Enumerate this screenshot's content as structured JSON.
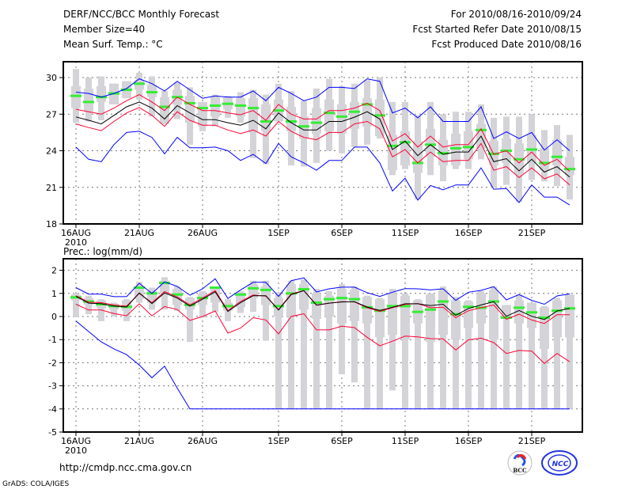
{
  "header": {
    "title": "DERF/NCC/BCC Monthly Forecast",
    "member_size": "Member Size=40",
    "variable": "Mean Surf. Temp.: °C",
    "period": "For 2010/08/16-2010/09/24",
    "started": "Fcst Started Refer Date 2010/08/15",
    "produced": "Fcst Produced Date 2010/08/16"
  },
  "footer": {
    "url": "http://cmdp.ncc.cma.gov.cn",
    "credit": "GrADS: COLA/IGES",
    "logo_bcc": "BCC",
    "logo_ncc": "NCC"
  },
  "colors": {
    "blue": "#0000ff",
    "red": "#ff0033",
    "black": "#000000",
    "green": "#33ee33",
    "box": "#d3d3d8",
    "grid": "#777777"
  },
  "chart_data": [
    {
      "type": "line",
      "title": "Mean Surf. Temp.: °C",
      "ylabel": "",
      "ylim": [
        18,
        31.3
      ],
      "yticks": [
        "18",
        "21",
        "24",
        "27",
        "30"
      ],
      "x_ticks": [
        {
          "day": 0,
          "label": "16AUG",
          "sub": "2010"
        },
        {
          "day": 5,
          "label": "21AUG"
        },
        {
          "day": 10,
          "label": "26AUG"
        },
        {
          "day": 16,
          "label": "1SEP"
        },
        {
          "day": 21,
          "label": "6SEP"
        },
        {
          "day": 26,
          "label": "11SEP"
        },
        {
          "day": 31,
          "label": "16SEP"
        },
        {
          "day": 36,
          "label": "21SEP"
        }
      ],
      "grid": true,
      "box": {
        "max": [
          30.7,
          30.0,
          30.1,
          29.5,
          29.7,
          30.4,
          30.1,
          28.9,
          29.6,
          29.2,
          28.0,
          28.6,
          28.5,
          28.8,
          29.0,
          28.6,
          29.5,
          28.9,
          28.1,
          29.1,
          29.9,
          29.3,
          29.5,
          29.8,
          30.0,
          28.0,
          28.0,
          26.9,
          28.0,
          27.0,
          27.2,
          27.2,
          27.8,
          26.7,
          26.8,
          26.8,
          27.0,
          25.7,
          26.1,
          25.3
        ],
        "q3": [
          29.3,
          29.1,
          29.3,
          29.5,
          29.7,
          29.8,
          29.4,
          28.4,
          29.0,
          28.5,
          28.0,
          28.4,
          28.4,
          28.3,
          28.3,
          27.8,
          28.2,
          27.6,
          26.8,
          27.5,
          28.2,
          27.8,
          28.0,
          28.3,
          28.2,
          25.3,
          25.6,
          24.8,
          25.8,
          24.9,
          25.4,
          25.6,
          26.2,
          24.8,
          25.0,
          24.6,
          25.3,
          24.2,
          24.9,
          23.5
        ],
        "q1": [
          27.5,
          27.2,
          28.0,
          27.8,
          28.3,
          29.0,
          28.4,
          26.2,
          27.8,
          26.3,
          26.0,
          26.8,
          27.4,
          26.8,
          25.5,
          25.6,
          26.4,
          25.6,
          25.0,
          25.4,
          25.6,
          25.4,
          25.8,
          26.0,
          25.2,
          22.4,
          22.8,
          22.2,
          23.5,
          22.8,
          22.8,
          23.3,
          24.2,
          22.8,
          23.0,
          22.1,
          23.0,
          22.4,
          22.8,
          22.0
        ],
        "min": [
          26.3,
          26.4,
          26.5,
          27.8,
          28.4,
          28.2,
          26.8,
          26.2,
          26.6,
          24.5,
          25.6,
          26.0,
          26.7,
          26.3,
          23.4,
          22.9,
          26.6,
          22.8,
          22.7,
          23.0,
          24.0,
          23.8,
          24.3,
          24.5,
          25.0,
          22.0,
          22.5,
          20.0,
          22.0,
          21.5,
          22.5,
          22.5,
          23.3,
          21.0,
          21.2,
          19.8,
          21.6,
          21.5,
          21.1,
          20.0
        ]
      },
      "series": [
        {
          "name": "blue-upper",
          "color": "blue",
          "values": [
            28.8,
            28.7,
            28.4,
            28.7,
            29.1,
            29.9,
            29.5,
            28.9,
            29.7,
            29.0,
            28.3,
            28.5,
            28.4,
            28.4,
            28.9,
            28.1,
            29.2,
            28.7,
            28.1,
            28.4,
            29.2,
            29.2,
            29.1,
            29.9,
            29.7,
            27.1,
            27.5,
            26.7,
            27.6,
            26.4,
            26.4,
            26.4,
            27.6,
            25.0,
            25.55,
            25.0,
            25.5,
            24.05,
            24.9,
            24.0
          ]
        },
        {
          "name": "red-upper",
          "color": "red",
          "values": [
            27.4,
            27.2,
            27.0,
            27.5,
            28.1,
            28.6,
            28.0,
            27.3,
            28.4,
            27.8,
            27.3,
            27.3,
            27.1,
            26.95,
            27.3,
            26.5,
            27.8,
            27.0,
            26.6,
            26.6,
            27.3,
            27.3,
            27.5,
            27.9,
            27.3,
            24.8,
            25.4,
            24.3,
            25.2,
            24.3,
            24.5,
            24.5,
            25.8,
            23.7,
            24.0,
            23.0,
            23.9,
            22.8,
            23.3,
            22.3
          ]
        },
        {
          "name": "ensemble-mean",
          "color": "black",
          "values": [
            26.77,
            26.5,
            26.2,
            26.9,
            27.6,
            28.0,
            27.5,
            26.6,
            27.7,
            27.1,
            26.55,
            26.55,
            26.3,
            26.1,
            26.5,
            25.8,
            27.1,
            26.3,
            25.7,
            25.7,
            26.4,
            26.4,
            26.75,
            27.2,
            26.6,
            24.1,
            24.8,
            23.6,
            24.5,
            23.7,
            23.9,
            23.9,
            25.2,
            23.1,
            23.35,
            22.35,
            23.3,
            22.25,
            22.7,
            21.85
          ]
        },
        {
          "name": "red-lower",
          "color": "red",
          "values": [
            26.2,
            25.9,
            25.65,
            26.4,
            27.1,
            27.55,
            26.9,
            26.0,
            27.2,
            26.5,
            26.1,
            26.1,
            25.7,
            25.4,
            25.7,
            25.2,
            26.4,
            25.6,
            25.1,
            24.9,
            25.5,
            25.5,
            26.2,
            26.4,
            25.8,
            23.5,
            24.1,
            23.0,
            23.9,
            23.1,
            23.2,
            23.2,
            24.6,
            22.4,
            22.7,
            21.8,
            22.6,
            21.7,
            22.1,
            21.2
          ]
        },
        {
          "name": "blue-lower",
          "color": "blue",
          "values": [
            24.3,
            23.3,
            23.1,
            24.5,
            25.5,
            25.6,
            25.1,
            23.75,
            25.1,
            24.25,
            24.25,
            24.3,
            24.0,
            23.2,
            23.7,
            22.95,
            24.6,
            23.5,
            23.0,
            22.4,
            23.2,
            23.2,
            24.3,
            24.3,
            23.0,
            20.7,
            21.75,
            19.95,
            21.15,
            20.8,
            21.2,
            21.2,
            22.6,
            20.85,
            20.9,
            19.75,
            21.2,
            20.2,
            20.2,
            19.55
          ]
        }
      ],
      "markers": {
        "name": "green-marks",
        "color": "green",
        "values": [
          28.5,
          28.0,
          28.4,
          28.7,
          29.0,
          29.5,
          28.8,
          27.6,
          28.4,
          27.9,
          27.5,
          27.7,
          27.85,
          27.7,
          27.5,
          26.4,
          27.3,
          26.4,
          26.0,
          26.3,
          27.1,
          26.8,
          27.2,
          27.8,
          26.9,
          24.4,
          24.7,
          23.0,
          24.5,
          23.8,
          24.2,
          24.3,
          25.7,
          23.75,
          24.0,
          23.3,
          24.1,
          23.0,
          23.5,
          22.5
        ]
      }
    },
    {
      "type": "line",
      "title": "Prec.: log(mm/d)",
      "ylabel": "",
      "ylim": [
        -5,
        2.5
      ],
      "yticks": [
        "-5",
        "-4",
        "-3",
        "-2",
        "-1",
        "0",
        "1",
        "2"
      ],
      "x_ticks": [
        {
          "day": 0,
          "label": "16AUG",
          "sub": "2010"
        },
        {
          "day": 5,
          "label": "21AUG"
        },
        {
          "day": 10,
          "label": "26AUG"
        },
        {
          "day": 16,
          "label": "1SEP"
        },
        {
          "day": 21,
          "label": "6SEP"
        },
        {
          "day": 26,
          "label": "11SEP"
        },
        {
          "day": 31,
          "label": "16SEP"
        },
        {
          "day": 36,
          "label": "21SEP"
        }
      ],
      "grid": true,
      "box": {
        "max": [
          1.0,
          0.9,
          0.75,
          0.6,
          0.75,
          1.5,
          1.25,
          1.7,
          1.3,
          0.85,
          1.1,
          1.3,
          0.75,
          1.1,
          1.55,
          1.55,
          1.05,
          1.55,
          1.6,
          1.2,
          1.1,
          1.4,
          1.3,
          0.9,
          0.8,
          1.2,
          1.0,
          0.75,
          1.0,
          1.3,
          0.85,
          0.7,
          1.1,
          1.3,
          0.5,
          0.95,
          0.6,
          0.45,
          0.8,
          0.95
        ],
        "q3": [
          0.95,
          0.8,
          0.7,
          0.55,
          0.7,
          1.3,
          1.1,
          1.55,
          1.2,
          0.8,
          1.0,
          1.2,
          0.6,
          1.0,
          1.4,
          1.3,
          0.8,
          1.4,
          1.4,
          1.0,
          0.9,
          1.2,
          1.15,
          0.85,
          0.75,
          1.0,
          0.9,
          0.7,
          0.95,
          1.15,
          0.7,
          0.65,
          1.0,
          1.15,
          0.5,
          0.7,
          0.6,
          0.4,
          0.7,
          0.95
        ],
        "q1": [
          0.7,
          0.5,
          0.35,
          0.3,
          0.25,
          0.75,
          0.6,
          1.0,
          0.5,
          0.3,
          0.5,
          0.6,
          0.25,
          0.4,
          0.8,
          0.5,
          0.0,
          0.0,
          0.3,
          -0.1,
          0.0,
          -0.3,
          -0.2,
          -0.3,
          -0.9,
          -0.8,
          -1.0,
          -0.3,
          -1.1,
          -0.8,
          -1.0,
          -0.5,
          -0.3,
          -1.0,
          -0.1,
          -0.3,
          -0.5,
          -1.4,
          -0.9,
          -0.9
        ],
        "min": [
          0.0,
          0.1,
          -0.2,
          0.0,
          -0.2,
          0.6,
          0.3,
          0.3,
          0.25,
          -1.1,
          -0.05,
          0.2,
          -0.2,
          0.15,
          0.2,
          -1.05,
          -4,
          -4,
          -4,
          -4,
          -4,
          -2.5,
          -2.85,
          -4,
          -4,
          -3.2,
          -4,
          -4,
          -4,
          -4,
          -4,
          -4,
          -4,
          -4,
          -4,
          -4,
          -4,
          -4,
          -4,
          -4
        ]
      },
      "series": [
        {
          "name": "blue-upper",
          "color": "blue",
          "values": [
            1.25,
            0.97,
            0.97,
            0.86,
            0.86,
            1.44,
            1.0,
            1.5,
            1.3,
            0.92,
            1.2,
            1.63,
            0.78,
            1.15,
            1.48,
            1.48,
            0.87,
            1.55,
            1.67,
            1.06,
            1.2,
            1.27,
            1.27,
            1.03,
            0.87,
            1.05,
            1.21,
            1.2,
            1.15,
            1.2,
            0.7,
            1.05,
            1.13,
            1.29,
            0.72,
            0.95,
            0.7,
            0.53,
            0.89,
            0.98
          ]
        },
        {
          "name": "red-upper",
          "color": "red",
          "values": [
            0.9,
            0.62,
            0.6,
            0.5,
            0.45,
            1.0,
            0.6,
            1.08,
            0.85,
            0.5,
            0.8,
            1.12,
            0.25,
            0.65,
            0.93,
            0.88,
            0.3,
            0.98,
            1.12,
            0.5,
            0.58,
            0.64,
            0.63,
            0.38,
            0.22,
            0.38,
            0.52,
            0.56,
            0.38,
            0.4,
            -0.05,
            0.25,
            0.38,
            0.5,
            -0.12,
            0.1,
            -0.15,
            -0.3,
            0.08,
            0.08
          ]
        },
        {
          "name": "ensemble-mean",
          "color": "black",
          "values": [
            0.87,
            0.58,
            0.55,
            0.45,
            0.41,
            1.02,
            0.56,
            1.02,
            0.8,
            0.45,
            0.75,
            1.07,
            0.22,
            0.6,
            0.9,
            0.9,
            0.28,
            0.95,
            1.12,
            0.49,
            0.58,
            0.63,
            0.64,
            0.41,
            0.26,
            0.4,
            0.55,
            0.55,
            0.47,
            0.53,
            0.05,
            0.35,
            0.5,
            0.64,
            0.01,
            0.26,
            0.01,
            -0.13,
            0.24,
            0.35
          ]
        },
        {
          "name": "red-lower",
          "color": "red",
          "values": [
            0.53,
            0.28,
            0.28,
            0.13,
            0.03,
            0.55,
            0.03,
            0.43,
            0.3,
            -0.17,
            0.0,
            0.24,
            -0.72,
            -0.5,
            -0.05,
            -0.15,
            -0.75,
            0.0,
            0.12,
            -0.58,
            -0.58,
            -0.42,
            -0.48,
            -0.9,
            -1.27,
            -1.07,
            -0.85,
            -0.88,
            -0.96,
            -0.97,
            -1.45,
            -1.01,
            -0.94,
            -1.13,
            -1.6,
            -1.47,
            -1.5,
            -2.03,
            -1.6,
            -1.96
          ]
        },
        {
          "name": "blue-lower",
          "color": "blue",
          "values": [
            -0.2,
            -0.65,
            -1.1,
            -1.4,
            -1.65,
            -2.1,
            -2.65,
            -2.15,
            -3.1,
            -4,
            -4,
            -4,
            -4,
            -4,
            -4,
            -4,
            -4,
            -4,
            -4,
            -4,
            -4,
            -4,
            -4,
            -4,
            -4,
            -4,
            -4,
            -4,
            -4,
            -4,
            -4,
            -4,
            -4,
            -4,
            -4,
            -4,
            -4,
            -4,
            -4,
            -4
          ]
        }
      ],
      "markers": {
        "name": "green-marks",
        "color": "green",
        "values": [
          0.83,
          0.65,
          0.53,
          0.45,
          0.42,
          1.25,
          1.0,
          1.45,
          0.95,
          0.5,
          0.8,
          1.25,
          0.45,
          0.95,
          1.22,
          1.15,
          0.45,
          1.0,
          1.18,
          0.6,
          0.75,
          0.8,
          0.75,
          0.4,
          0.25,
          0.45,
          0.45,
          0.2,
          0.3,
          0.65,
          0.1,
          0.42,
          0.38,
          0.65,
          -0.05,
          0.38,
          0.18,
          -0.05,
          0.25,
          0.35
        ]
      }
    }
  ]
}
